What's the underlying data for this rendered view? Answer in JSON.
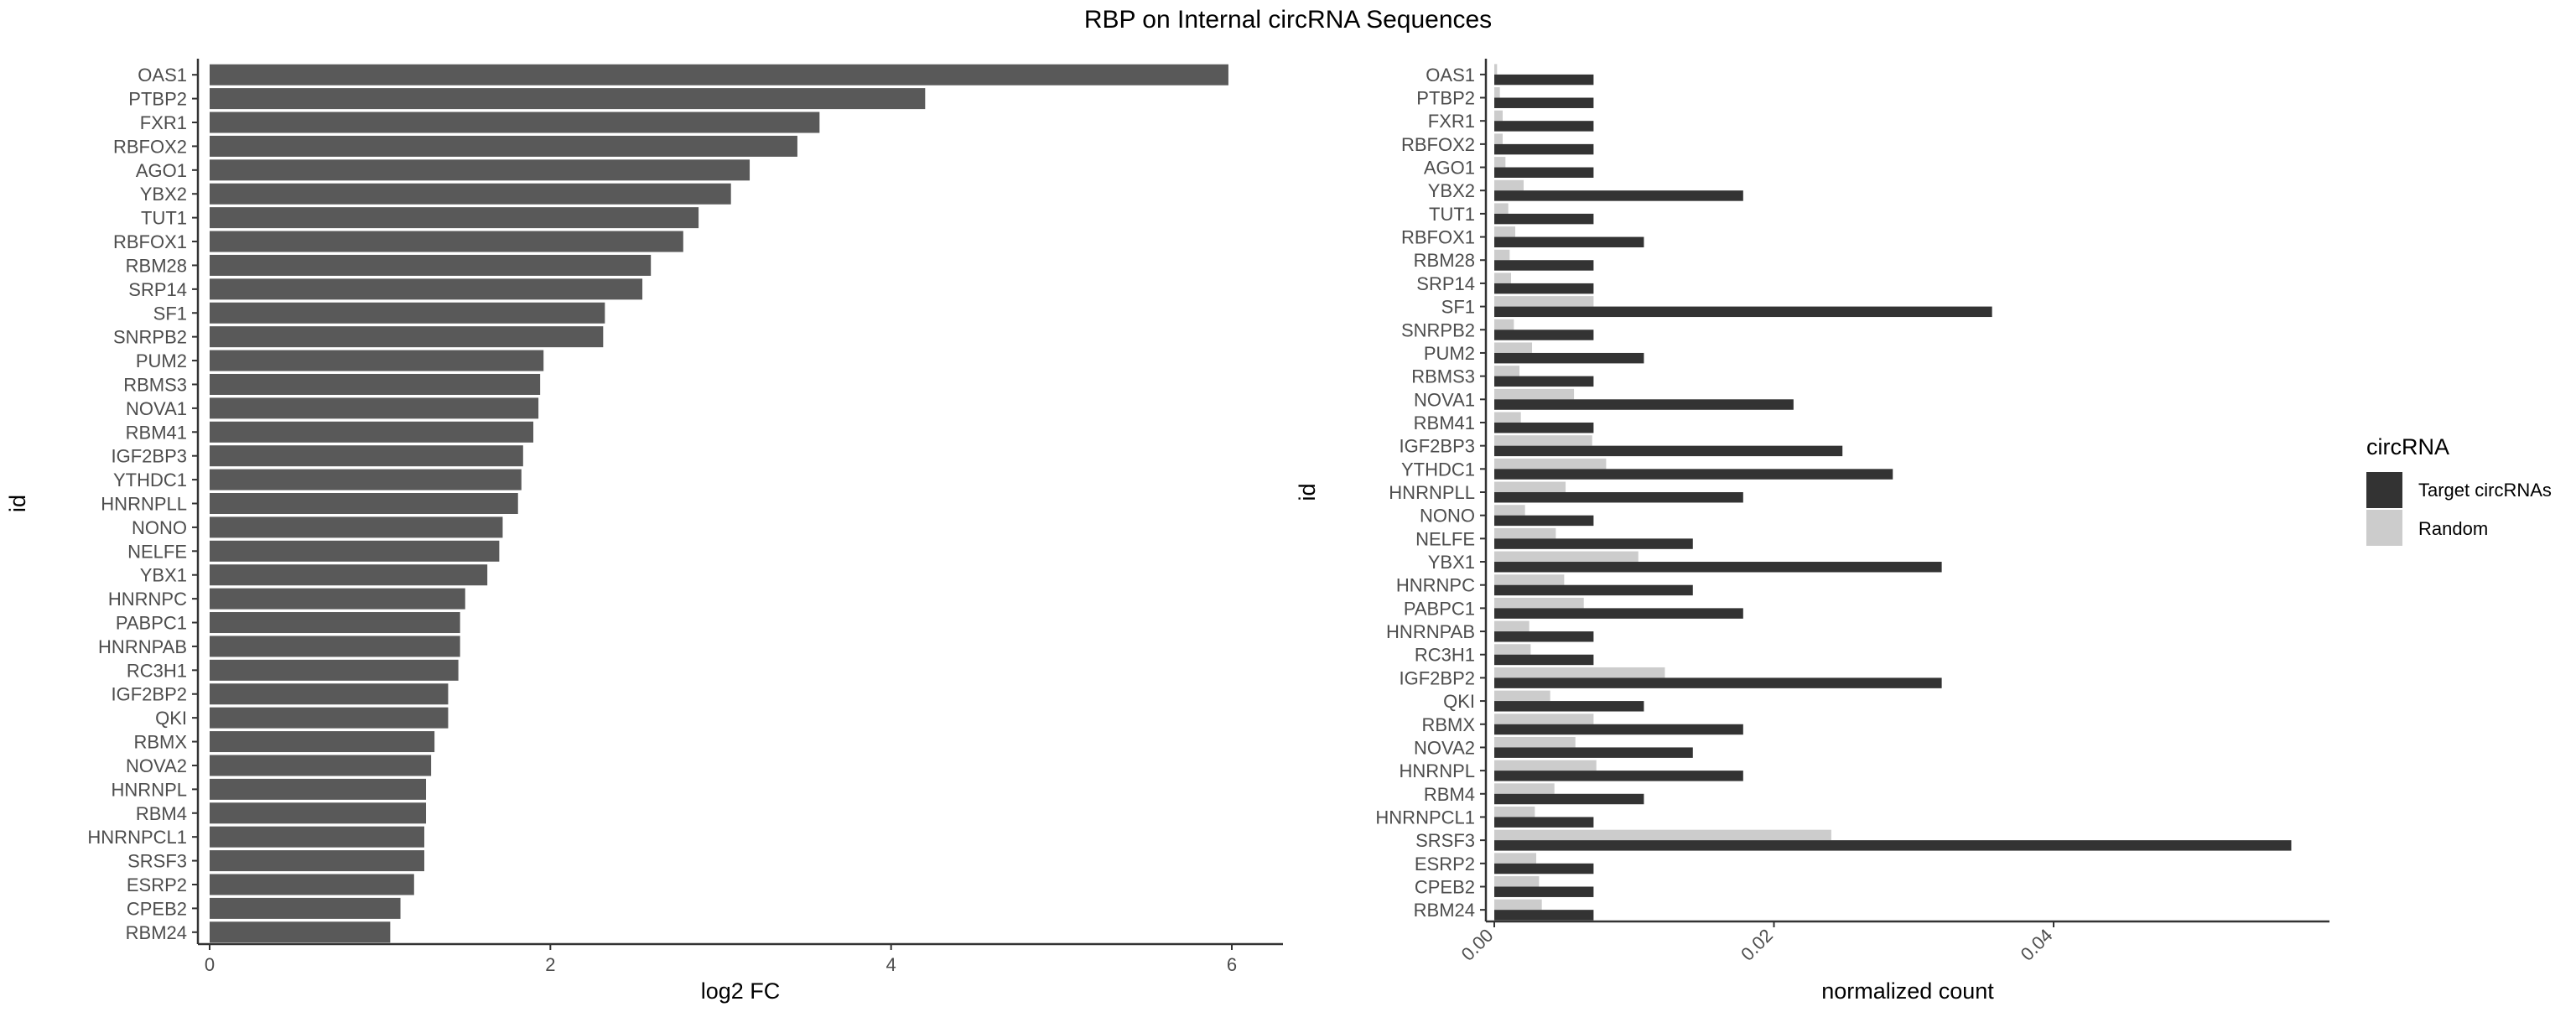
{
  "title": "RBP on Internal circRNA Sequences",
  "colors": {
    "left_bar": "#595959",
    "target": "#333333",
    "random": "#cccccc"
  },
  "chart_data": [
    {
      "type": "bar",
      "orientation": "horizontal",
      "xlabel": "log2 FC",
      "ylabel": "id",
      "xlim": [
        0,
        6.3
      ],
      "xticks": [
        0,
        2,
        4,
        6
      ],
      "grid": false,
      "categories": [
        "OAS1",
        "PTBP2",
        "FXR1",
        "RBFOX2",
        "AGO1",
        "YBX2",
        "TUT1",
        "RBFOX1",
        "RBM28",
        "SRP14",
        "SF1",
        "SNRPB2",
        "PUM2",
        "RBMS3",
        "NOVA1",
        "RBM41",
        "IGF2BP3",
        "YTHDC1",
        "HNRNPLL",
        "NONO",
        "NELFE",
        "YBX1",
        "HNRNPC",
        "PABPC1",
        "HNRNPAB",
        "RC3H1",
        "IGF2BP2",
        "QKI",
        "RBMX",
        "NOVA2",
        "HNRNPL",
        "RBM4",
        "HNRNPCL1",
        "SRSF3",
        "ESRP2",
        "CPEB2",
        "RBM24"
      ],
      "values": [
        5.98,
        4.2,
        3.58,
        3.45,
        3.17,
        3.06,
        2.87,
        2.78,
        2.59,
        2.54,
        2.32,
        2.31,
        1.96,
        1.94,
        1.93,
        1.9,
        1.84,
        1.83,
        1.81,
        1.72,
        1.7,
        1.63,
        1.5,
        1.47,
        1.47,
        1.46,
        1.4,
        1.4,
        1.32,
        1.3,
        1.27,
        1.27,
        1.26,
        1.26,
        1.2,
        1.12,
        1.06
      ]
    },
    {
      "type": "bar",
      "orientation": "horizontal",
      "grouped": true,
      "xlabel": "normalized count",
      "ylabel": "id",
      "xlim": [
        0,
        0.06
      ],
      "xticks": [
        0,
        0.02,
        0.04
      ],
      "xtick_labels": [
        "0.00",
        "0.02",
        "0.04"
      ],
      "grid": false,
      "legend": {
        "title": "circRNA",
        "position": "right"
      },
      "categories": [
        "OAS1",
        "PTBP2",
        "FXR1",
        "RBFOX2",
        "AGO1",
        "YBX2",
        "TUT1",
        "RBFOX1",
        "RBM28",
        "SRP14",
        "SF1",
        "SNRPB2",
        "PUM2",
        "RBMS3",
        "NOVA1",
        "RBM41",
        "IGF2BP3",
        "YTHDC1",
        "HNRNPLL",
        "NONO",
        "NELFE",
        "YBX1",
        "HNRNPC",
        "PABPC1",
        "HNRNPAB",
        "RC3H1",
        "IGF2BP2",
        "QKI",
        "RBMX",
        "NOVA2",
        "HNRNPL",
        "RBM4",
        "HNRNPCL1",
        "SRSF3",
        "ESRP2",
        "CPEB2",
        "RBM24"
      ],
      "series": [
        {
          "name": "Target circRNAs",
          "values": [
            0.0071,
            0.0071,
            0.0071,
            0.0071,
            0.0071,
            0.0178,
            0.0071,
            0.0107,
            0.0071,
            0.0071,
            0.0356,
            0.0071,
            0.0107,
            0.0071,
            0.0214,
            0.0071,
            0.0249,
            0.0285,
            0.0178,
            0.0071,
            0.0142,
            0.032,
            0.0142,
            0.0178,
            0.0071,
            0.0071,
            0.032,
            0.0107,
            0.0178,
            0.0142,
            0.0178,
            0.0107,
            0.0071,
            0.057,
            0.0071,
            0.0071,
            0.0071
          ]
        },
        {
          "name": "Random",
          "values": [
            0.0002,
            0.0004,
            0.0006,
            0.0006,
            0.0008,
            0.0021,
            0.001,
            0.0015,
            0.0011,
            0.0012,
            0.0071,
            0.0014,
            0.0027,
            0.0018,
            0.0057,
            0.0019,
            0.007,
            0.008,
            0.0051,
            0.0022,
            0.0044,
            0.0103,
            0.005,
            0.0064,
            0.0025,
            0.0026,
            0.0122,
            0.004,
            0.0071,
            0.0058,
            0.0073,
            0.0043,
            0.0029,
            0.0241,
            0.003,
            0.0032,
            0.0034
          ]
        }
      ]
    }
  ]
}
